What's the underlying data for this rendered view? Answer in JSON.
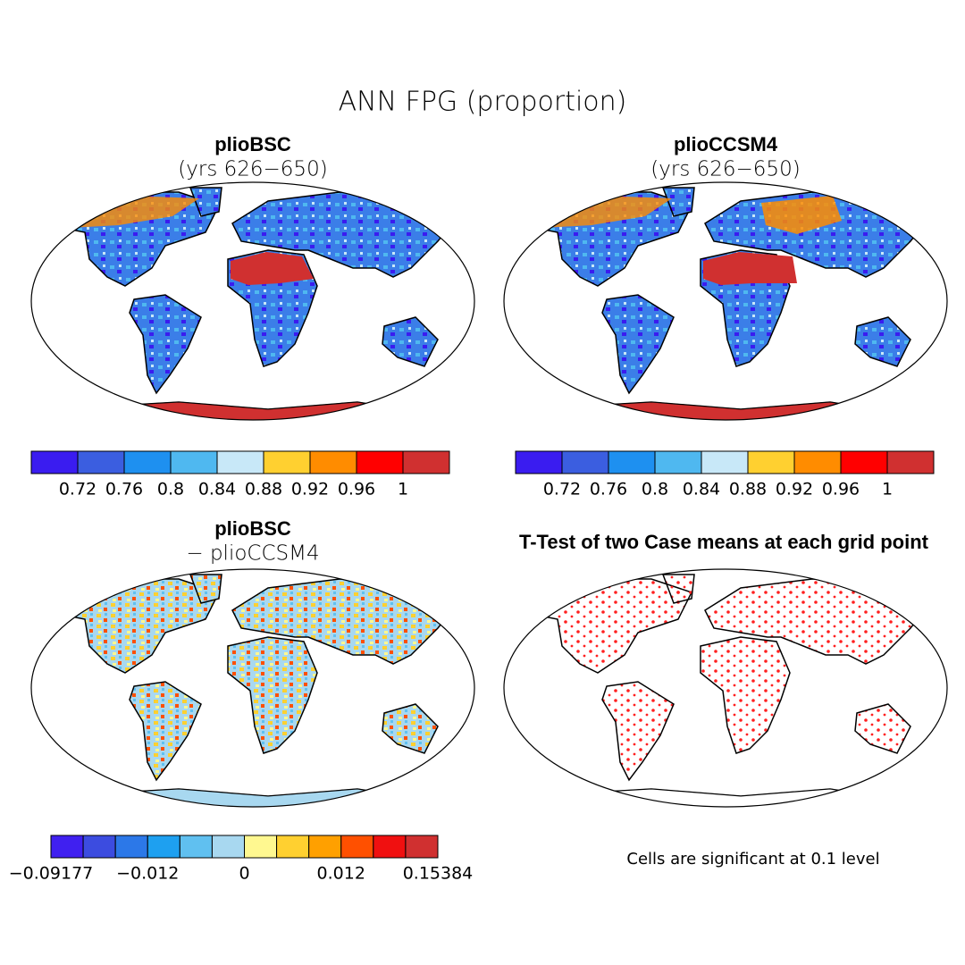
{
  "title": "ANN FPG (proportion)",
  "panels": [
    {
      "title": "plioBSC",
      "subtitle": "(yrs 626−650)",
      "colorbar": {
        "colors": [
          "#3a1cf0",
          "#3b5ee0",
          "#1e90f0",
          "#4fb8f0",
          "#c8e8f8",
          "#ffd030",
          "#ff8c00",
          "#ff0000",
          "#d03030"
        ],
        "ticks": [
          0.72,
          0.76,
          0.8,
          0.84,
          0.88,
          0.92,
          0.96,
          1
        ]
      }
    },
    {
      "title": "plioCCSM4",
      "subtitle": "(yrs 626−650)",
      "colorbar": {
        "colors": [
          "#3a1cf0",
          "#3b5ee0",
          "#1e90f0",
          "#4fb8f0",
          "#c8e8f8",
          "#ffd030",
          "#ff8c00",
          "#ff0000",
          "#d03030"
        ],
        "ticks": [
          0.72,
          0.76,
          0.8,
          0.84,
          0.88,
          0.92,
          0.96,
          1
        ]
      }
    },
    {
      "title": "plioBSC",
      "subtitle": "− plioCCSM4",
      "colorbar": {
        "colors": [
          "#4020f0",
          "#3c4ce0",
          "#2c78e8",
          "#1ea0f0",
          "#60c0f0",
          "#a8d8f0",
          "#fff890",
          "#ffd030",
          "#ffa000",
          "#ff5000",
          "#f01010",
          "#d03030"
        ],
        "ticks": [
          {
            "value": -0.09177,
            "label": "−0.09177"
          },
          {
            "value": -0.012,
            "label": "−0.012"
          },
          0,
          0.012,
          0.15384
        ]
      }
    },
    {
      "title": "T-Test of two Case means at each grid point",
      "note": "Cells are significant at 0.1 level"
    }
  ]
}
